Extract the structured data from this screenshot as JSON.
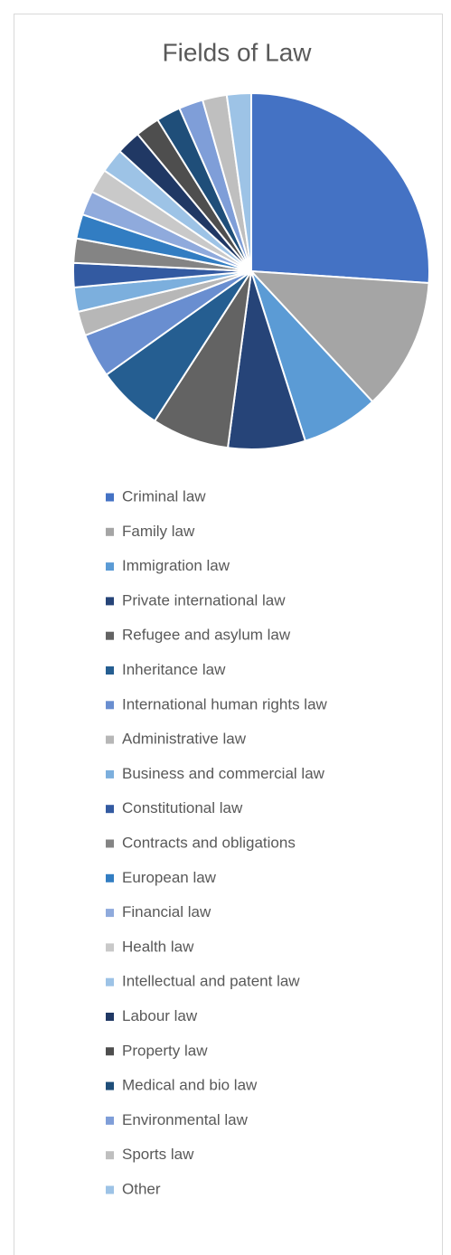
{
  "chart_data": {
    "type": "pie",
    "title": "Fields of Law",
    "categories": [
      "Criminal law",
      "Family law",
      "Immigration law",
      "Private international law",
      "Refugee and asylum law",
      "Inheritance law",
      "International human rights law",
      "Administrative law",
      "Business and commercial law",
      "Constitutional law",
      "Contracts and obligations",
      "European law",
      "Financial law",
      "Health law",
      "Intellectual and patent law",
      "Labour law",
      "Property law",
      "Medical and bio law",
      "Environmental law",
      "Sports law",
      "Other"
    ],
    "values": [
      26,
      12,
      7,
      7,
      7,
      6,
      4,
      2.2,
      2.2,
      2.2,
      2.2,
      2.2,
      2.2,
      2.2,
      2.2,
      2.2,
      2.2,
      2.2,
      2.2,
      2.2,
      2.2
    ],
    "colors": [
      "#4472c4",
      "#a5a5a5",
      "#5b9bd5",
      "#264478",
      "#636363",
      "#255e91",
      "#698ed0",
      "#b7b7b7",
      "#7cafdd",
      "#335aa1",
      "#848484",
      "#327dc2",
      "#8faadc",
      "#c9c9c9",
      "#9dc3e6",
      "#203864",
      "#4e4e4e",
      "#1f4e79",
      "#7f9ed8",
      "#bfbfbf",
      "#9dc3e6"
    ],
    "legend": "bottom"
  }
}
